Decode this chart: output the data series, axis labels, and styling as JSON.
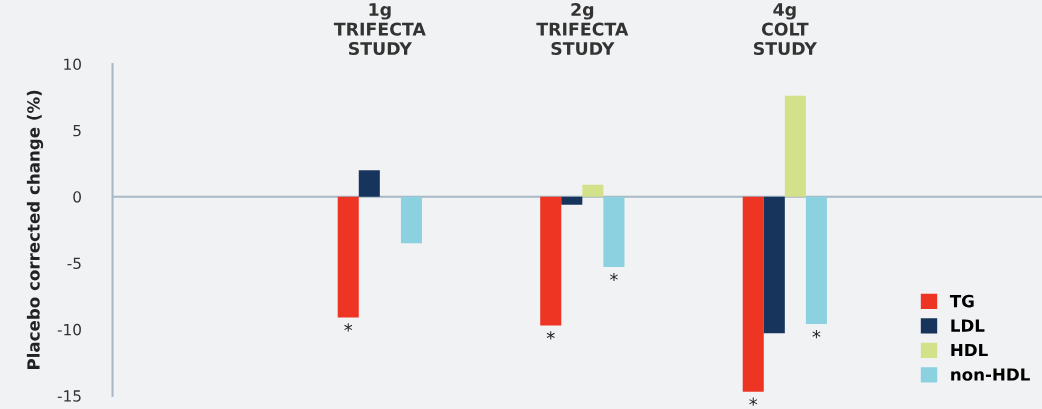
{
  "chart_data": {
    "type": "bar",
    "categories": [
      "1g\nTRIFECTA\nSTUDY",
      "2g\nTRIFECTA\nSTUDY",
      "4g\nCOLT\nSTUDY"
    ],
    "ylabel": "Placebo corrected change (%)",
    "ylim": [
      -15,
      10
    ],
    "yticks": [
      -15,
      -10,
      -5,
      0,
      5,
      10
    ],
    "series": [
      {
        "name": "TG",
        "color": "#ee3524",
        "values": [
          -9.1,
          -9.7,
          -14.7
        ],
        "value_labels": [
          "*",
          "*",
          "*"
        ]
      },
      {
        "name": "LDL",
        "color": "#17355c",
        "values": [
          2.0,
          -0.6,
          -10.3
        ]
      },
      {
        "name": "HDL",
        "color": "#d3e28a",
        "values": [
          null,
          0.9,
          7.6
        ]
      },
      {
        "name": "non-HDL",
        "color": "#8bd1e0",
        "values": [
          -3.5,
          -5.3,
          -9.6
        ],
        "value_labels": [
          null,
          "*",
          "*"
        ]
      }
    ],
    "legend": "bottom right"
  }
}
